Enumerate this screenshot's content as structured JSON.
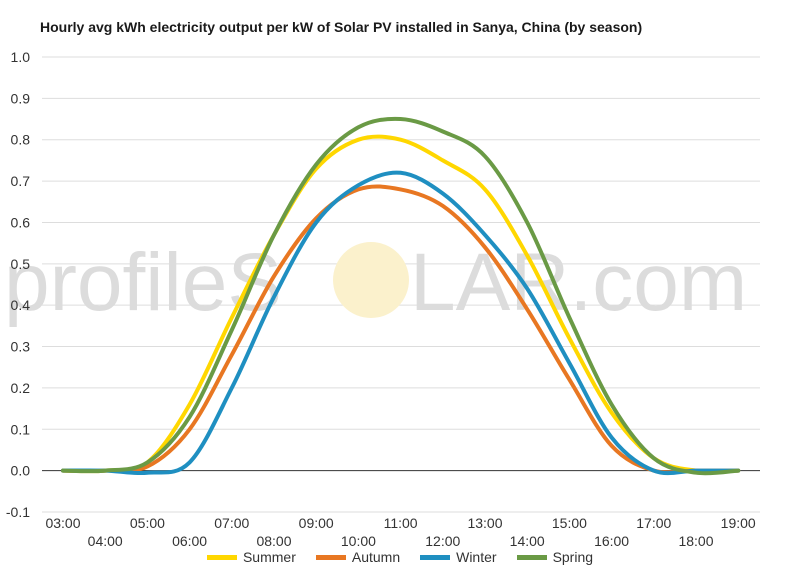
{
  "chart_data": {
    "type": "line",
    "title": "Hourly avg kWh electricity output per kW of Solar PV installed in Sanya, China (by season)",
    "xlabel": "",
    "ylabel": "",
    "x": [
      "03:00",
      "04:00",
      "05:00",
      "06:00",
      "07:00",
      "08:00",
      "09:00",
      "10:00",
      "11:00",
      "12:00",
      "13:00",
      "14:00",
      "15:00",
      "16:00",
      "17:00",
      "18:00",
      "19:00"
    ],
    "ylim": [
      -0.1,
      1.0
    ],
    "yticks": [
      "1.0",
      "0.9",
      "0.8",
      "0.7",
      "0.6",
      "0.5",
      "0.4",
      "0.3",
      "0.2",
      "0.1",
      "0.0",
      "-0.1"
    ],
    "grid": true,
    "legend_position": "bottom",
    "series": [
      {
        "name": "Summer",
        "color": "#FFD700",
        "values": [
          0,
          0,
          0.02,
          0.16,
          0.37,
          0.57,
          0.73,
          0.8,
          0.8,
          0.75,
          0.68,
          0.52,
          0.32,
          0.14,
          0.03,
          0,
          0
        ]
      },
      {
        "name": "Autumn",
        "color": "#E87722",
        "values": [
          0,
          0,
          0.01,
          0.1,
          0.28,
          0.47,
          0.61,
          0.68,
          0.68,
          0.64,
          0.54,
          0.39,
          0.22,
          0.06,
          0,
          0,
          0
        ]
      },
      {
        "name": "Winter",
        "color": "#1F8FC1",
        "values": [
          0,
          0,
          -0.005,
          0.02,
          0.2,
          0.42,
          0.6,
          0.69,
          0.72,
          0.67,
          0.57,
          0.44,
          0.26,
          0.08,
          0,
          0,
          0
        ]
      },
      {
        "name": "Spring",
        "color": "#6A9A45",
        "values": [
          0,
          0,
          0.02,
          0.13,
          0.34,
          0.57,
          0.74,
          0.83,
          0.85,
          0.82,
          0.76,
          0.6,
          0.37,
          0.16,
          0.03,
          -0.005,
          0
        ]
      }
    ]
  },
  "watermark": {
    "left": "profileS",
    "right": "LAR.com"
  },
  "legend_items": [
    "Summer",
    "Autumn",
    "Winter",
    "Spring"
  ]
}
